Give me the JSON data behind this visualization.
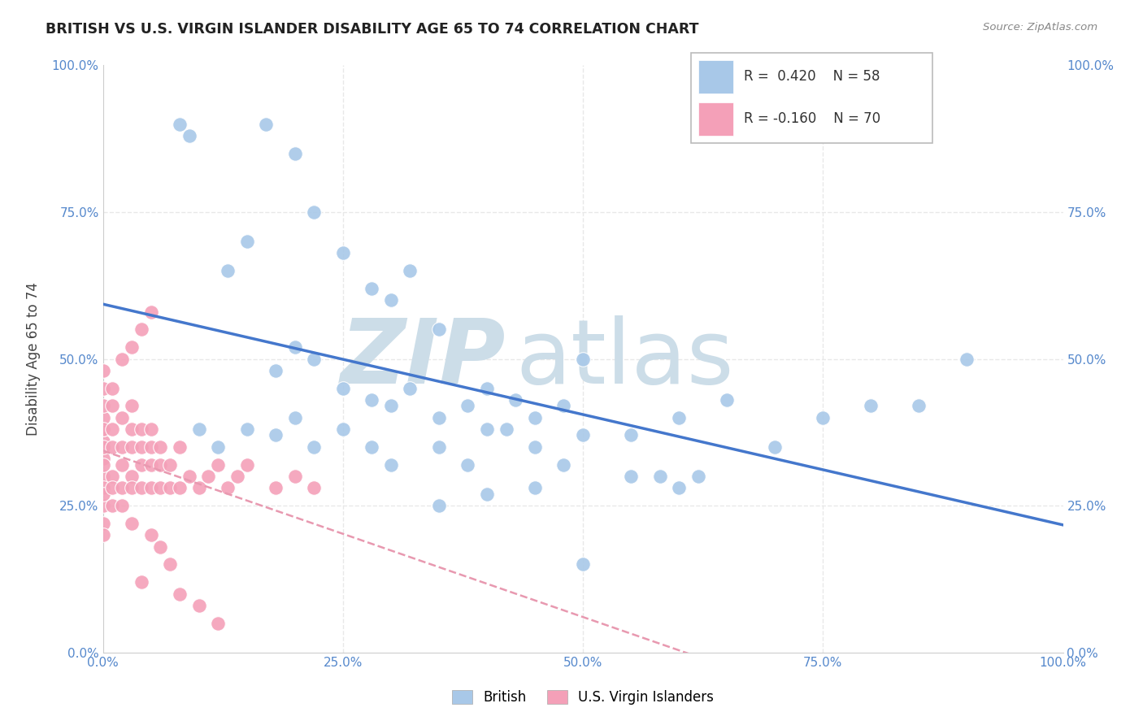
{
  "title": "BRITISH VS U.S. VIRGIN ISLANDER DISABILITY AGE 65 TO 74 CORRELATION CHART",
  "source_text": "Source: ZipAtlas.com",
  "ylabel": "Disability Age 65 to 74",
  "xlim": [
    0,
    100
  ],
  "ylim": [
    0,
    100
  ],
  "british_R": 0.42,
  "british_N": 58,
  "usvi_R": -0.16,
  "usvi_N": 70,
  "british_color": "#a8c8e8",
  "usvi_color": "#f4a0b8",
  "british_label": "British",
  "usvi_label": "U.S. Virgin Islanders",
  "watermark_zip": "ZIP",
  "watermark_atlas": "atlas",
  "watermark_color": "#ccdde8",
  "legend_british_box": "#a8c8e8",
  "legend_usvi_box": "#f4a0b8",
  "background_color": "#ffffff",
  "grid_color": "#e8e8e8",
  "trend_blue": "#4477cc",
  "trend_pink": "#e899b0",
  "british_x": [
    17,
    20,
    8,
    9,
    13,
    15,
    22,
    25,
    28,
    30,
    32,
    35,
    18,
    20,
    22,
    25,
    28,
    30,
    32,
    35,
    38,
    40,
    42,
    45,
    48,
    50,
    10,
    12,
    15,
    18,
    20,
    22,
    25,
    28,
    30,
    35,
    38,
    40,
    45,
    50,
    55,
    60,
    65,
    70,
    75,
    80,
    85,
    90,
    55,
    60,
    62,
    35,
    40,
    45,
    50,
    58,
    48,
    43
  ],
  "british_y": [
    90,
    85,
    90,
    88,
    65,
    70,
    75,
    68,
    62,
    60,
    65,
    55,
    48,
    52,
    50,
    45,
    43,
    42,
    45,
    40,
    42,
    45,
    38,
    40,
    42,
    50,
    38,
    35,
    38,
    37,
    40,
    35,
    38,
    35,
    32,
    35,
    32,
    38,
    35,
    37,
    37,
    40,
    43,
    35,
    40,
    42,
    42,
    50,
    30,
    28,
    30,
    25,
    27,
    28,
    15,
    30,
    32,
    43
  ],
  "usvi_x": [
    0,
    0,
    0,
    0,
    0,
    0,
    0,
    0,
    0,
    0,
    0,
    0,
    0,
    0,
    0,
    0,
    1,
    1,
    1,
    1,
    1,
    1,
    1,
    2,
    2,
    2,
    2,
    2,
    3,
    3,
    3,
    3,
    3,
    4,
    4,
    4,
    4,
    5,
    5,
    5,
    5,
    6,
    6,
    6,
    7,
    7,
    8,
    8,
    9,
    10,
    11,
    12,
    13,
    14,
    15,
    18,
    20,
    22,
    3,
    5,
    6,
    7,
    4,
    8,
    10,
    12,
    2,
    3,
    4,
    5
  ],
  "usvi_y": [
    30,
    33,
    36,
    38,
    40,
    42,
    35,
    28,
    25,
    22,
    45,
    48,
    38,
    32,
    27,
    20,
    38,
    35,
    30,
    42,
    45,
    28,
    25,
    40,
    35,
    32,
    28,
    25,
    38,
    42,
    35,
    30,
    28,
    38,
    35,
    32,
    28,
    38,
    35,
    32,
    28,
    35,
    32,
    28,
    32,
    28,
    35,
    28,
    30,
    28,
    30,
    32,
    28,
    30,
    32,
    28,
    30,
    28,
    22,
    20,
    18,
    15,
    12,
    10,
    8,
    5,
    50,
    52,
    55,
    58
  ]
}
